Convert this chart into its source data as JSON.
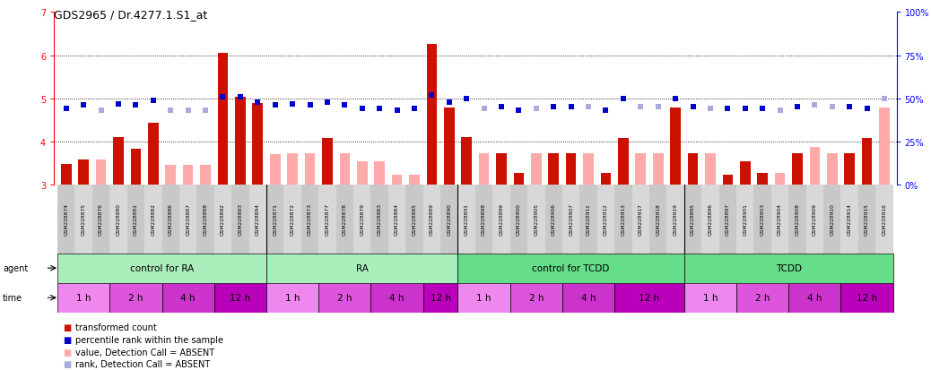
{
  "title": "GDS2965 / Dr.4277.1.S1_at",
  "samples": [
    "GSM228874",
    "GSM228875",
    "GSM228876",
    "GSM228880",
    "GSM228881",
    "GSM228882",
    "GSM228886",
    "GSM228887",
    "GSM228888",
    "GSM228892",
    "GSM228893",
    "GSM228894",
    "GSM228871",
    "GSM228872",
    "GSM228873",
    "GSM228877",
    "GSM228878",
    "GSM228879",
    "GSM228883",
    "GSM228884",
    "GSM228885",
    "GSM228889",
    "GSM228890",
    "GSM228891",
    "GSM228898",
    "GSM228899",
    "GSM228900",
    "GSM228905",
    "GSM228906",
    "GSM228907",
    "GSM228911",
    "GSM228912",
    "GSM228913",
    "GSM228917",
    "GSM228918",
    "GSM228919",
    "GSM228895",
    "GSM228896",
    "GSM228897",
    "GSM228901",
    "GSM228903",
    "GSM228904",
    "GSM228908",
    "GSM228909",
    "GSM228910",
    "GSM228914",
    "GSM228915",
    "GSM228916"
  ],
  "transformed_count": [
    3.47,
    3.58,
    3.58,
    4.1,
    3.83,
    4.44,
    3.45,
    3.45,
    3.45,
    6.05,
    5.04,
    4.9,
    3.7,
    3.72,
    3.72,
    4.08,
    3.72,
    3.55,
    3.55,
    3.22,
    3.22,
    6.26,
    4.78,
    4.1,
    3.72,
    3.72,
    3.27,
    3.72,
    3.72,
    3.72,
    3.72,
    3.27,
    4.08,
    3.72,
    3.72,
    4.78,
    3.72,
    3.72,
    3.22,
    3.55,
    3.27,
    3.27,
    3.72,
    3.88,
    3.72,
    3.72,
    4.08,
    4.78
  ],
  "percentile_rank": [
    44,
    46,
    43,
    47,
    46,
    49,
    43,
    43,
    43,
    51,
    51,
    48,
    46,
    47,
    46,
    48,
    46,
    44,
    44,
    43,
    44,
    52,
    48,
    50,
    44,
    45,
    43,
    44,
    45,
    45,
    45,
    43,
    50,
    45,
    45,
    50,
    45,
    44,
    44,
    44,
    44,
    43,
    45,
    46,
    45,
    45,
    44,
    50
  ],
  "absent_value": [
    false,
    false,
    true,
    false,
    false,
    false,
    true,
    true,
    true,
    false,
    false,
    false,
    true,
    true,
    true,
    false,
    true,
    true,
    true,
    true,
    true,
    false,
    false,
    false,
    true,
    false,
    false,
    true,
    false,
    false,
    true,
    false,
    false,
    true,
    true,
    false,
    false,
    true,
    false,
    false,
    false,
    true,
    false,
    true,
    true,
    false,
    false,
    true
  ],
  "absent_rank": [
    false,
    false,
    true,
    false,
    false,
    false,
    true,
    true,
    true,
    false,
    false,
    false,
    false,
    false,
    false,
    false,
    false,
    false,
    false,
    false,
    false,
    false,
    false,
    false,
    true,
    false,
    false,
    true,
    false,
    false,
    true,
    false,
    false,
    true,
    true,
    false,
    false,
    true,
    false,
    false,
    false,
    true,
    false,
    true,
    true,
    false,
    false,
    true
  ],
  "agents": [
    {
      "label": "control for RA",
      "start": 0,
      "end": 11
    },
    {
      "label": "RA",
      "start": 12,
      "end": 22
    },
    {
      "label": "control for TCDD",
      "start": 23,
      "end": 35
    },
    {
      "label": "TCDD",
      "start": 36,
      "end": 47
    }
  ],
  "agent_colors": [
    "#AAEEBB",
    "#AAEEBB",
    "#66DD88",
    "#66DD88"
  ],
  "time_groups": [
    {
      "label": "1 h",
      "start": 0,
      "end": 2
    },
    {
      "label": "2 h",
      "start": 3,
      "end": 5
    },
    {
      "label": "4 h",
      "start": 6,
      "end": 8
    },
    {
      "label": "12 h",
      "start": 9,
      "end": 11
    },
    {
      "label": "1 h",
      "start": 12,
      "end": 14
    },
    {
      "label": "2 h",
      "start": 15,
      "end": 17
    },
    {
      "label": "4 h",
      "start": 18,
      "end": 20
    },
    {
      "label": "12 h",
      "start": 21,
      "end": 22
    },
    {
      "label": "1 h",
      "start": 23,
      "end": 25
    },
    {
      "label": "2 h",
      "start": 26,
      "end": 28
    },
    {
      "label": "4 h",
      "start": 29,
      "end": 31
    },
    {
      "label": "12 h",
      "start": 32,
      "end": 35
    },
    {
      "label": "1 h",
      "start": 36,
      "end": 38
    },
    {
      "label": "2 h",
      "start": 39,
      "end": 41
    },
    {
      "label": "4 h",
      "start": 42,
      "end": 44
    },
    {
      "label": "12 h",
      "start": 45,
      "end": 47
    }
  ],
  "time_colors": {
    "1 h": "#EE88EE",
    "2 h": "#DD55DD",
    "4 h": "#CC33CC",
    "12 h": "#BB00BB"
  },
  "ylim_left": [
    3.0,
    7.0
  ],
  "ylim_right": [
    0,
    100
  ],
  "yticks_left": [
    3,
    4,
    5,
    6,
    7
  ],
  "yticks_right": [
    0,
    25,
    50,
    75,
    100
  ],
  "bar_color_present": "#CC1100",
  "bar_color_absent": "#FFAAAA",
  "rank_color_present": "#0000CC",
  "rank_color_absent": "#AAAADD",
  "background_color": "#FFFFFF",
  "label_box_colors": [
    "#C8C8C8",
    "#D8D8D8"
  ]
}
